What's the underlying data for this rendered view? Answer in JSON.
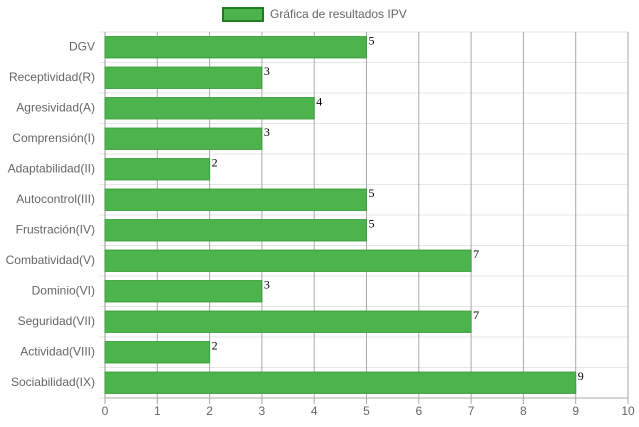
{
  "chart_data": {
    "type": "bar",
    "orientation": "horizontal",
    "categories": [
      "DGV",
      "Receptividad(R)",
      "Agresividad(A)",
      "Comprensión(I)",
      "Adaptabilidad(II)",
      "Autocontrol(III)",
      "Frustración(IV)",
      "Combatividad(V)",
      "Dominio(VI)",
      "Seguridad(VII)",
      "Actividad(VIII)",
      "Sociabilidad(IX)"
    ],
    "series": [
      {
        "name": "Gráfica de resultados IPV",
        "color": "#4db34d",
        "values": [
          5,
          3,
          4,
          3,
          2,
          5,
          5,
          7,
          3,
          7,
          2,
          9
        ]
      }
    ],
    "xlim": [
      0,
      10
    ],
    "xticks": [
      0,
      1,
      2,
      3,
      4,
      5,
      6,
      7,
      8,
      9,
      10
    ],
    "grid": true,
    "legend": "top"
  }
}
